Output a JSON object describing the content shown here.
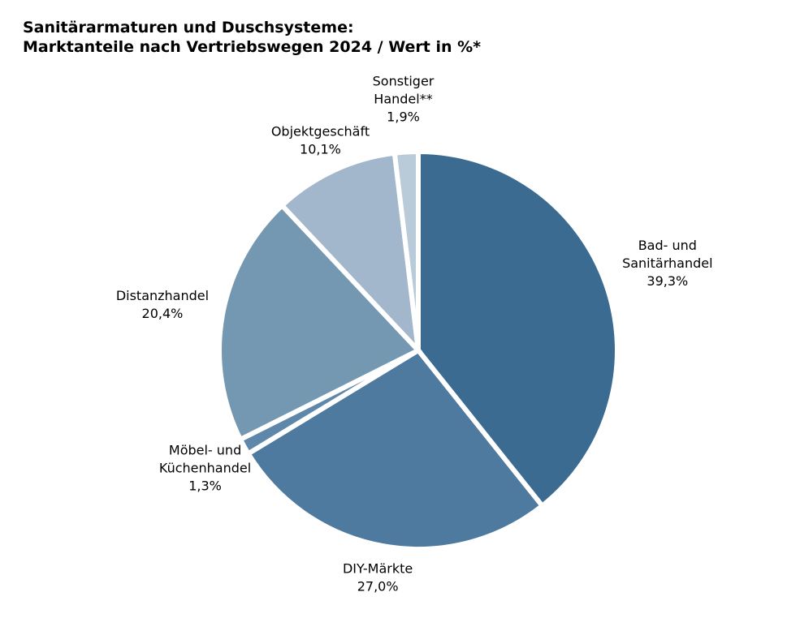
{
  "chart_data": {
    "type": "pie",
    "title": "Sanitärarmaturen und Duschsysteme:\nMarktanteile nach Vertriebswegen 2024 / Wert in %*",
    "categories": [
      "Bad- und\nSanitärhandel",
      "DIY-Märkte",
      "Möbel- und\nKüchenhandel",
      "Distanzhandel",
      "Objektgeschäft",
      "Sonstiger\nHandel**"
    ],
    "values": [
      39.3,
      27.0,
      1.3,
      20.4,
      10.1,
      1.9
    ],
    "value_labels": [
      "39,3%",
      "27,0%",
      "1,3%",
      "20,4%",
      "10,1%",
      "1,9%"
    ],
    "colors": [
      "#3b6b91",
      "#4d7a9e",
      "#5f87aa",
      "#7598b2",
      "#a2b7cb",
      "#b9cad9"
    ]
  }
}
